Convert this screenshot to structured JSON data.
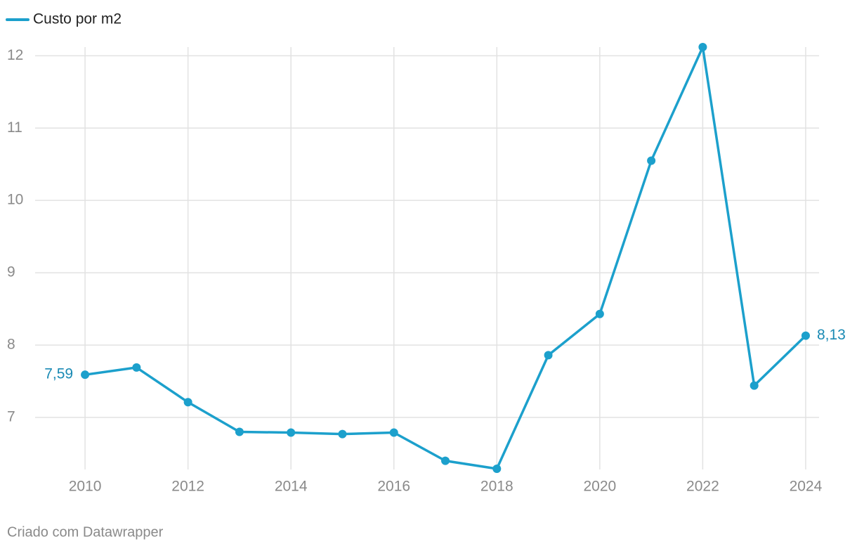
{
  "chart_data": {
    "type": "line",
    "x": [
      2010,
      2011,
      2012,
      2013,
      2014,
      2015,
      2016,
      2017,
      2018,
      2019,
      2020,
      2021,
      2022,
      2023,
      2024
    ],
    "series": [
      {
        "name": "Custo por m2",
        "color": "#1ca0cc",
        "values": [
          7.59,
          7.69,
          7.21,
          6.8,
          6.79,
          6.77,
          6.79,
          6.4,
          6.29,
          7.86,
          8.43,
          10.55,
          12.12,
          7.44,
          8.13
        ],
        "value_labels": [
          "7,59",
          null,
          null,
          null,
          null,
          null,
          null,
          null,
          null,
          null,
          null,
          null,
          null,
          null,
          "8,13"
        ]
      }
    ],
    "xlim": [
      2009.03,
      2024.26
    ],
    "xticks": [
      2010,
      2012,
      2014,
      2016,
      2018,
      2020,
      2022,
      2024
    ],
    "ylim": [
      6.28,
      12.12
    ],
    "yticks": [
      7,
      8,
      9,
      10,
      11,
      12
    ],
    "grid": true,
    "legend": "top-left",
    "footer": "Criado com Datawrapper"
  }
}
